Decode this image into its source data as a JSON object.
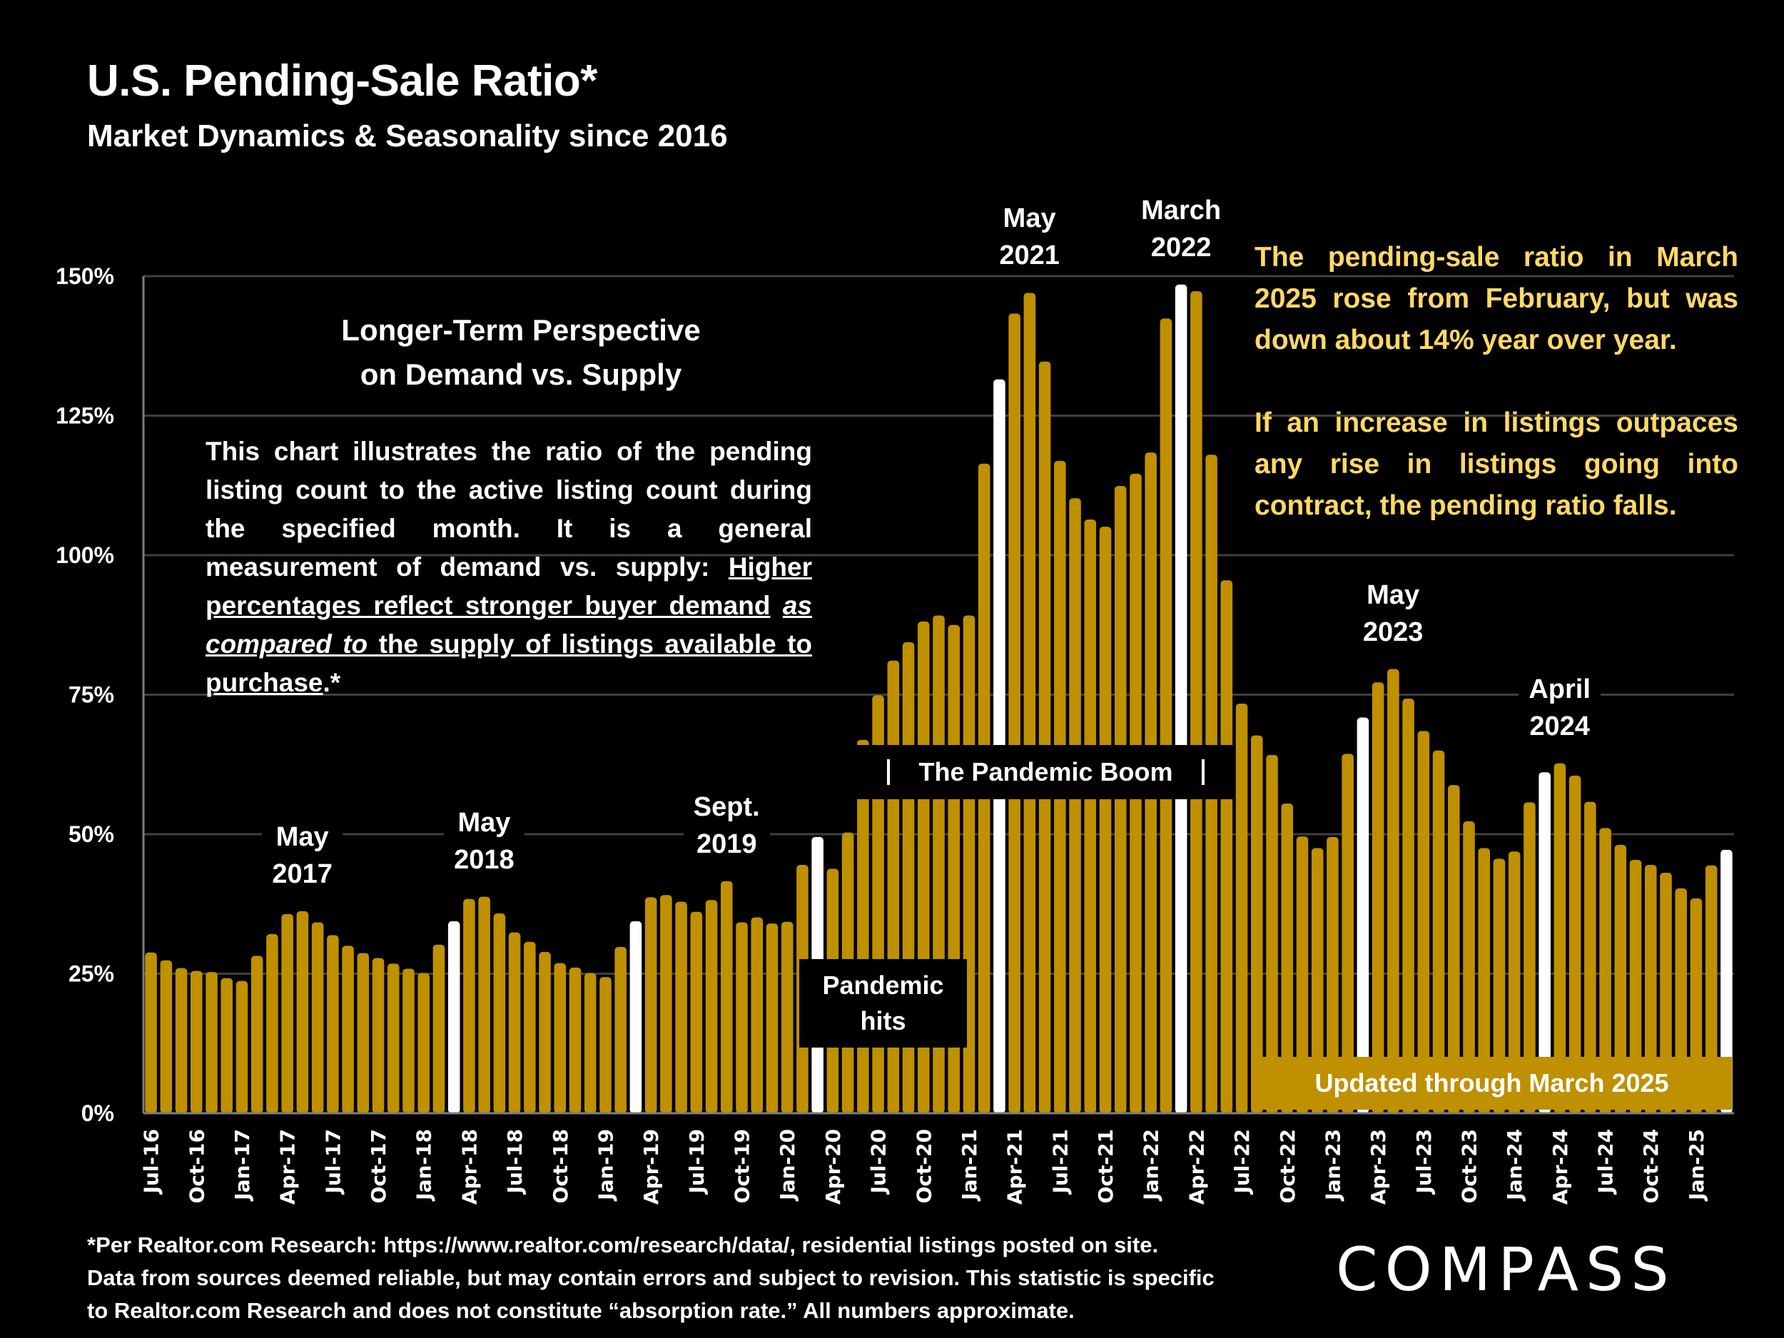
{
  "header": {
    "title": "U.S. Pending-Sale Ratio*",
    "subtitle": "Market Dynamics & Seasonality since 2016"
  },
  "colors": {
    "background": "#000000",
    "bar": "#BF9000",
    "highlight_bar": "#FFFFFF",
    "gridline": "#404040",
    "note_text": "#FFD966",
    "banner": "#BF9000"
  },
  "info_box": {
    "heading_line1": "Longer-Term Perspective",
    "heading_line2": "on Demand vs. Supply",
    "body_plain": "This chart illustrates the ratio of the pending listing count to the active listing count during the specified month. It is a general measurement of demand vs. supply: ",
    "body_underlined_1": "Higher percentages reflect stronger buyer demand",
    "body_italic": "as compared to",
    "body_underlined_2": " the supply of listings available to purchase",
    "body_tail": ".*"
  },
  "right_note": {
    "para1": "The pending-sale ratio in March 2025 rose from February, but was down about 14% year over year.",
    "para2": "If an increase in listings outpaces any rise in listings going into contract, the pending ratio falls."
  },
  "callouts": {
    "pandemic_boom": "The Pandemic Boom",
    "pandemic_hits_line1": "Pandemic",
    "pandemic_hits_line2": "hits",
    "updated": "Updated through March 2025"
  },
  "footer": {
    "line1": "*Per Realtor.com Research:  https://www.realtor.com/research/data/, residential listings posted on site.",
    "line2": "Data from sources deemed reliable, but may contain errors and subject to revision. This statistic is specific",
    "line3": "to Realtor.com Research and does not constitute “absorption rate.” All numbers approximate.",
    "logo": "COMPASS"
  },
  "chart_data": {
    "type": "bar",
    "title": "U.S. Pending-Sale Ratio*",
    "xlabel": "",
    "ylabel": "",
    "ylim": [
      0,
      150
    ],
    "yticks": [
      "0%",
      "25%",
      "50%",
      "75%",
      "100%",
      "125%",
      "150%"
    ],
    "ytick_values": [
      0,
      25,
      50,
      75,
      100,
      125,
      150
    ],
    "grid": true,
    "legend": "none",
    "categories": [
      "Jul-16",
      "Aug-16",
      "Sep-16",
      "Oct-16",
      "Nov-16",
      "Dec-16",
      "Jan-17",
      "Feb-17",
      "Mar-17",
      "Apr-17",
      "May-17",
      "Jun-17",
      "Jul-17",
      "Aug-17",
      "Sep-17",
      "Oct-17",
      "Nov-17",
      "Dec-17",
      "Jan-18",
      "Feb-18",
      "Mar-18",
      "Apr-18",
      "May-18",
      "Jun-18",
      "Jul-18",
      "Aug-18",
      "Sep-18",
      "Oct-18",
      "Nov-18",
      "Dec-18",
      "Jan-19",
      "Feb-19",
      "Mar-19",
      "Apr-19",
      "May-19",
      "Jun-19",
      "Jul-19",
      "Aug-19",
      "Sep-19",
      "Oct-19",
      "Nov-19",
      "Dec-19",
      "Jan-20",
      "Feb-20",
      "Mar-20",
      "Apr-20",
      "May-20",
      "Jun-20",
      "Jul-20",
      "Aug-20",
      "Sep-20",
      "Oct-20",
      "Nov-20",
      "Dec-20",
      "Jan-21",
      "Feb-21",
      "Mar-21",
      "Apr-21",
      "May-21",
      "Jun-21",
      "Jul-21",
      "Aug-21",
      "Sep-21",
      "Oct-21",
      "Nov-21",
      "Dec-21",
      "Jan-22",
      "Feb-22",
      "Mar-22",
      "Apr-22",
      "May-22",
      "Jun-22",
      "Jul-22",
      "Aug-22",
      "Sep-22",
      "Oct-22",
      "Nov-22",
      "Dec-22",
      "Jan-23",
      "Feb-23",
      "Mar-23",
      "Apr-23",
      "May-23",
      "Jun-23",
      "Jul-23",
      "Aug-23",
      "Sep-23",
      "Oct-23",
      "Nov-23",
      "Dec-23",
      "Jan-24",
      "Feb-24",
      "Mar-24",
      "Apr-24",
      "May-24",
      "Jun-24",
      "Jul-24",
      "Aug-24",
      "Sep-24",
      "Oct-24",
      "Nov-24",
      "Dec-24",
      "Jan-25",
      "Feb-25",
      "Mar-25"
    ],
    "values": [
      28.8,
      27.4,
      26.0,
      25.5,
      25.3,
      24.2,
      23.7,
      28.2,
      32.1,
      35.7,
      36.2,
      34.2,
      31.9,
      30.0,
      28.7,
      27.8,
      26.8,
      25.9,
      25.1,
      30.2,
      34.4,
      38.4,
      38.8,
      35.8,
      32.4,
      30.7,
      28.9,
      26.9,
      26.1,
      25.1,
      24.4,
      29.8,
      34.4,
      38.7,
      39.1,
      37.9,
      36.1,
      38.2,
      41.6,
      34.2,
      35.1,
      34.0,
      34.3,
      44.5,
      49.5,
      43.8,
      50.3,
      66.9,
      74.9,
      81.1,
      84.4,
      88.1,
      89.2,
      87.5,
      89.2,
      116.4,
      131.5,
      143.3,
      147.0,
      134.7,
      116.9,
      110.2,
      106.4,
      105.1,
      112.4,
      114.6,
      118.4,
      142.4,
      148.5,
      147.3,
      118.0,
      95.5,
      73.4,
      67.7,
      64.2,
      55.5,
      49.6,
      47.5,
      49.5,
      64.4,
      70.9,
      77.2,
      79.6,
      74.3,
      68.5,
      65.0,
      58.8,
      52.3,
      47.5,
      45.6,
      46.9,
      55.7,
      61.1,
      62.7,
      60.5,
      55.8,
      51.1,
      48.1,
      45.4,
      44.5,
      43.1,
      40.3,
      38.5,
      44.4,
      47.2
    ],
    "highlighted": [
      "Mar-18",
      "Mar-19",
      "Mar-20",
      "Mar-21",
      "Mar-22",
      "Mar-23",
      "Mar-24",
      "Mar-25"
    ],
    "xtick_labels": [
      "Jul-16",
      "Oct-16",
      "Jan-17",
      "Apr-17",
      "Jul-17",
      "Oct-17",
      "Jan-18",
      "Apr-18",
      "Jul-18",
      "Oct-18",
      "Jan-19",
      "Apr-19",
      "Jul-19",
      "Oct-19",
      "Jan-20",
      "Apr-20",
      "Jul-20",
      "Oct-20",
      "Jan-21",
      "Apr-21",
      "Jul-21",
      "Oct-21",
      "Jan-22",
      "Apr-22",
      "Jul-22",
      "Oct-22",
      "Jan-23",
      "Apr-23",
      "Jul-23",
      "Oct-23",
      "Jan-24",
      "Apr-24",
      "Jul-24",
      "Oct-24",
      "Jan-25"
    ],
    "annotations": [
      {
        "category": "May-17",
        "line1": "May",
        "line2": "2017"
      },
      {
        "category": "May-18",
        "line1": "May",
        "line2": "2018"
      },
      {
        "category": "Sep-19",
        "line1": "Sept.",
        "line2": "2019"
      },
      {
        "category": "May-21",
        "line1": "May",
        "line2": "2021"
      },
      {
        "category": "Mar-22",
        "line1": "March",
        "line2": "2022"
      },
      {
        "category": "May-23",
        "line1": "May",
        "line2": "2023"
      },
      {
        "category": "Apr-24",
        "line1": "April",
        "line2": "2024"
      }
    ]
  }
}
